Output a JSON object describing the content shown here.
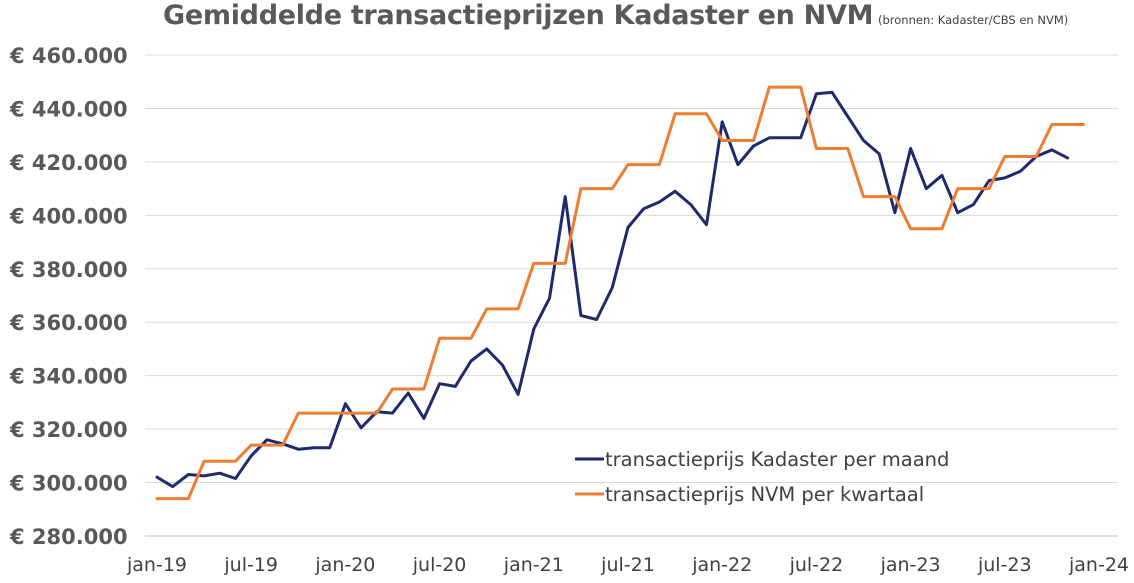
{
  "chart_data": {
    "type": "line",
    "title": "Gemiddelde transactieprijzen Kadaster en NVM",
    "subtitle": "(bronnen: Kadaster/CBS en NVM)",
    "ylim": [
      280000,
      460000
    ],
    "y_ticks": [
      280000,
      300000,
      320000,
      340000,
      360000,
      380000,
      400000,
      420000,
      440000,
      460000
    ],
    "y_tick_labels": [
      "€ 280.000",
      "€ 300.000",
      "€ 320.000",
      "€ 340.000",
      "€ 360.000",
      "€ 380.000",
      "€ 400.000",
      "€ 420.000",
      "€ 440.000",
      "€ 460.000"
    ],
    "x_tick_labels": [
      "jan-19",
      "jul-19",
      "jan-20",
      "jul-20",
      "jan-21",
      "jul-21",
      "jan-22",
      "jul-22",
      "jan-23",
      "jul-23",
      "jan-24"
    ],
    "grid": "horizontal",
    "legend_position": "bottom-right",
    "series": [
      {
        "name": "transactieprijs Kadaster per maand",
        "color": "#1f2a6e",
        "step": false,
        "x": [
          "2019-01",
          "2019-02",
          "2019-03",
          "2019-04",
          "2019-05",
          "2019-06",
          "2019-07",
          "2019-08",
          "2019-09",
          "2019-10",
          "2019-11",
          "2019-12",
          "2020-01",
          "2020-02",
          "2020-03",
          "2020-04",
          "2020-05",
          "2020-06",
          "2020-07",
          "2020-08",
          "2020-09",
          "2020-10",
          "2020-11",
          "2020-12",
          "2021-01",
          "2021-02",
          "2021-03",
          "2021-04",
          "2021-05",
          "2021-06",
          "2021-07",
          "2021-08",
          "2021-09",
          "2021-10",
          "2021-11",
          "2021-12",
          "2022-01",
          "2022-02",
          "2022-03",
          "2022-04",
          "2022-05",
          "2022-06",
          "2022-07",
          "2022-08",
          "2022-09",
          "2022-10",
          "2022-11",
          "2022-12",
          "2023-01",
          "2023-02",
          "2023-03",
          "2023-04",
          "2023-05",
          "2023-06",
          "2023-07",
          "2023-08",
          "2023-09",
          "2023-10",
          "2023-11"
        ],
        "values": [
          302000,
          298500,
          303000,
          302500,
          303500,
          301500,
          310000,
          316000,
          314500,
          312500,
          313000,
          313000,
          329500,
          320500,
          326500,
          326000,
          333500,
          324000,
          337000,
          336000,
          345500,
          350000,
          344000,
          333000,
          357500,
          369000,
          407000,
          362500,
          361000,
          373000,
          395500,
          402500,
          405000,
          409000,
          404000,
          396500,
          435000,
          419000,
          426000,
          429000,
          429000,
          429000,
          445500,
          446000,
          437000,
          428000,
          423000,
          401000,
          425000,
          410000,
          415000,
          401000,
          404000,
          413000,
          414000,
          416500,
          422000,
          424500,
          421500
        ]
      },
      {
        "name": "transactieprijs NVM per kwartaal",
        "color": "#ed7d31",
        "step": true,
        "x": [
          "2019-Q1",
          "2019-Q2",
          "2019-Q3",
          "2019-Q4",
          "2020-Q1",
          "2020-Q2",
          "2020-Q3",
          "2020-Q4",
          "2021-Q1",
          "2021-Q2",
          "2021-Q3",
          "2021-Q4",
          "2022-Q1",
          "2022-Q2",
          "2022-Q3",
          "2022-Q4",
          "2023-Q1",
          "2023-Q2",
          "2023-Q3",
          "2023-Q4"
        ],
        "values": [
          294000,
          308000,
          314000,
          326000,
          326000,
          335000,
          354000,
          365000,
          382000,
          410000,
          419000,
          438000,
          428000,
          448000,
          425000,
          407000,
          395000,
          410000,
          422000,
          434000
        ]
      }
    ]
  }
}
